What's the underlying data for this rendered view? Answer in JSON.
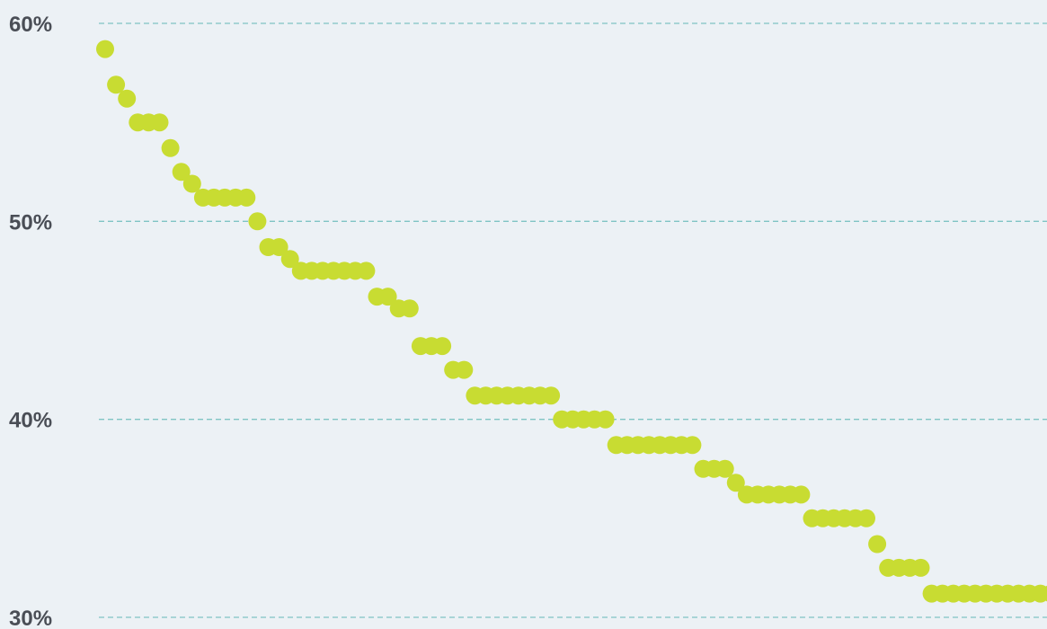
{
  "chart_data": {
    "type": "scatter",
    "title": "",
    "xlabel": "",
    "ylabel": "",
    "ylim": [
      30,
      60
    ],
    "yticks": [
      {
        "value": 60,
        "label": "60%"
      },
      {
        "value": 50,
        "label": "50%"
      },
      {
        "value": 40,
        "label": "40%"
      },
      {
        "value": 30,
        "label": "30%"
      }
    ],
    "grid": true,
    "grid_style": "dashed-horizontal",
    "legend": "none",
    "x": [
      1,
      2,
      3,
      4,
      5,
      6,
      7,
      8,
      9,
      10,
      11,
      12,
      13,
      14,
      15,
      16,
      17,
      18,
      19,
      20,
      21,
      22,
      23,
      24,
      25,
      26,
      27,
      28,
      29,
      30,
      31,
      32,
      33,
      34,
      35,
      36,
      37,
      38,
      39,
      40,
      41,
      42,
      43,
      44,
      45,
      46,
      47,
      48,
      49,
      50,
      51,
      52,
      53,
      54,
      55,
      56,
      57,
      58,
      59,
      60,
      61,
      62,
      63,
      64,
      65,
      66,
      67,
      68,
      69,
      70,
      71,
      72,
      73,
      74,
      75,
      76,
      77,
      78,
      79,
      80,
      81,
      82,
      83,
      84,
      85,
      86,
      87,
      88,
      89
    ],
    "series": [
      {
        "color": "#c8dc32",
        "values": [
          58.7,
          56.9,
          56.2,
          55.0,
          55.0,
          55.0,
          53.7,
          52.5,
          51.9,
          51.2,
          51.2,
          51.2,
          51.2,
          51.2,
          50.0,
          48.7,
          48.7,
          48.1,
          47.5,
          47.5,
          47.5,
          47.5,
          47.5,
          47.5,
          47.5,
          46.2,
          46.2,
          45.6,
          45.6,
          43.7,
          43.7,
          43.7,
          42.5,
          42.5,
          41.2,
          41.2,
          41.2,
          41.2,
          41.2,
          41.2,
          41.2,
          41.2,
          40.0,
          40.0,
          40.0,
          40.0,
          40.0,
          38.7,
          38.7,
          38.7,
          38.7,
          38.7,
          38.7,
          38.7,
          38.7,
          37.5,
          37.5,
          37.5,
          36.8,
          36.2,
          36.2,
          36.2,
          36.2,
          36.2,
          36.2,
          35.0,
          35.0,
          35.0,
          35.0,
          35.0,
          35.0,
          33.7,
          32.5,
          32.5,
          32.5,
          32.5,
          31.2,
          31.2,
          31.2,
          31.2,
          31.2,
          31.2,
          31.2,
          31.2,
          31.2,
          31.2,
          31.2,
          31.2,
          31.2
        ]
      }
    ]
  }
}
